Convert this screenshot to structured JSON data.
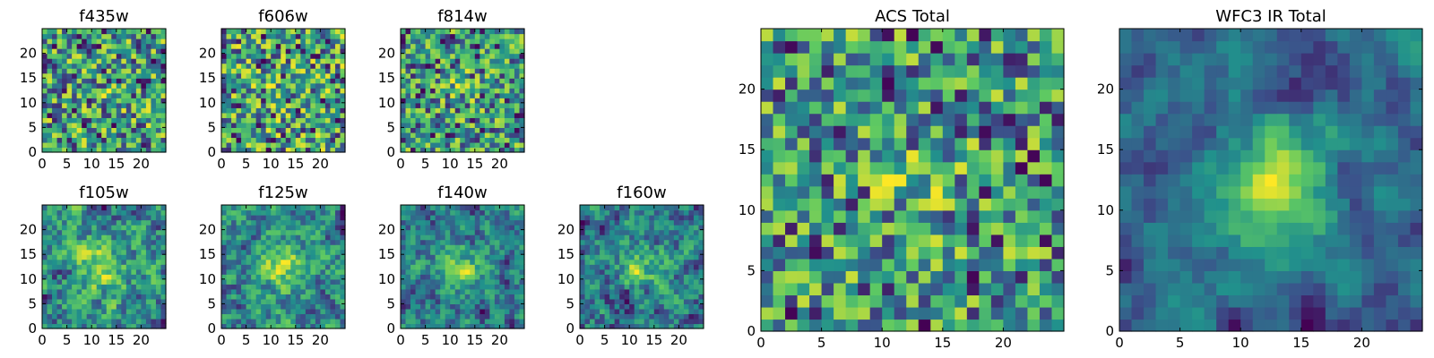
{
  "figure": {
    "description_type": "grid of pixel-intensity heatmap panels",
    "colormap": "viridis",
    "colormap_stops": [
      "#440154",
      "#3b528b",
      "#21918c",
      "#5ec962",
      "#fde725"
    ]
  },
  "chart_data": [
    {
      "type": "heatmap",
      "title": "f435w",
      "grid_size": 25,
      "xticks": [
        0,
        5,
        10,
        15,
        20
      ],
      "yticks": [
        0,
        5,
        10,
        15,
        20
      ],
      "xlim": [
        0,
        25
      ],
      "ylim": [
        0,
        25
      ],
      "seed": 11,
      "center_strength": 0.05,
      "center_radius": 3,
      "smoothing": 0
    },
    {
      "type": "heatmap",
      "title": "f606w",
      "grid_size": 25,
      "xticks": [
        0,
        5,
        10,
        15,
        20
      ],
      "yticks": [
        0,
        5,
        10,
        15,
        20
      ],
      "xlim": [
        0,
        25
      ],
      "ylim": [
        0,
        25
      ],
      "seed": 23,
      "center_strength": 0.05,
      "center_radius": 3,
      "smoothing": 0
    },
    {
      "type": "heatmap",
      "title": "f814w",
      "grid_size": 25,
      "xticks": [
        0,
        5,
        10,
        15,
        20
      ],
      "yticks": [
        0,
        5,
        10,
        15,
        20
      ],
      "xlim": [
        0,
        25
      ],
      "ylim": [
        0,
        25
      ],
      "seed": 37,
      "center_strength": 0.12,
      "center_radius": 3,
      "smoothing": 0
    },
    {
      "type": "heatmap",
      "title": "f105w",
      "grid_size": 25,
      "xticks": [
        0,
        5,
        10,
        15,
        20
      ],
      "yticks": [
        0,
        5,
        10,
        15,
        20
      ],
      "xlim": [
        0,
        25
      ],
      "ylim": [
        0,
        25
      ],
      "seed": 41,
      "center_strength": 0.35,
      "center_radius": 4,
      "smoothing": 1
    },
    {
      "type": "heatmap",
      "title": "f125w",
      "grid_size": 25,
      "xticks": [
        0,
        5,
        10,
        15,
        20
      ],
      "yticks": [
        0,
        5,
        10,
        15,
        20
      ],
      "xlim": [
        0,
        25
      ],
      "ylim": [
        0,
        25
      ],
      "seed": 53,
      "center_strength": 0.35,
      "center_radius": 4,
      "smoothing": 1
    },
    {
      "type": "heatmap",
      "title": "f140w",
      "grid_size": 25,
      "xticks": [
        0,
        5,
        10,
        15,
        20
      ],
      "yticks": [
        0,
        5,
        10,
        15,
        20
      ],
      "xlim": [
        0,
        25
      ],
      "ylim": [
        0,
        25
      ],
      "seed": 67,
      "center_strength": 0.4,
      "center_radius": 3,
      "smoothing": 1
    },
    {
      "type": "heatmap",
      "title": "f160w",
      "grid_size": 25,
      "xticks": [
        0,
        5,
        10,
        15,
        20
      ],
      "yticks": [
        0,
        5,
        10,
        15,
        20
      ],
      "xlim": [
        0,
        25
      ],
      "ylim": [
        0,
        25
      ],
      "seed": 79,
      "center_strength": 0.45,
      "center_radius": 3,
      "smoothing": 1
    },
    {
      "type": "heatmap",
      "title": "ACS Total",
      "grid_size": 25,
      "xticks": [
        0,
        5,
        10,
        15,
        20
      ],
      "yticks": [
        0,
        5,
        10,
        15,
        20
      ],
      "xlim": [
        0,
        25
      ],
      "ylim": [
        0,
        25
      ],
      "seed": 97,
      "center_strength": 0.15,
      "center_radius": 3,
      "smoothing": 0
    },
    {
      "type": "heatmap",
      "title": "WFC3 IR Total",
      "grid_size": 25,
      "xticks": [
        0,
        5,
        10,
        15,
        20
      ],
      "yticks": [
        0,
        5,
        10,
        15,
        20
      ],
      "xlim": [
        0,
        25
      ],
      "ylim": [
        0,
        25
      ],
      "seed": 101,
      "center_strength": 0.7,
      "center_radius": 4,
      "smoothing": 2
    }
  ]
}
